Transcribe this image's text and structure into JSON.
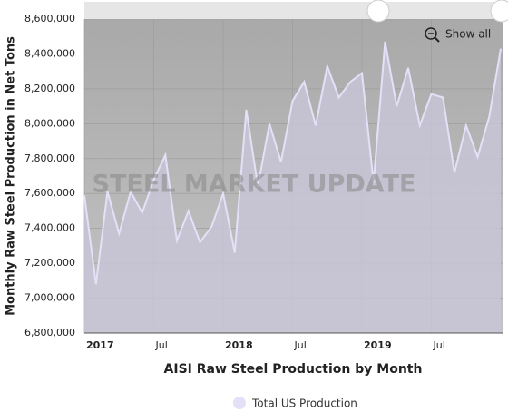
{
  "chart_data": {
    "type": "area",
    "title": "AISI Raw Steel Production by Month",
    "y_label": "Monthly Raw Steel Production in Net Tons",
    "watermark": "STEEL MARKET UPDATE",
    "button": "Show all",
    "categories": [
      "2017",
      null,
      null,
      null,
      null,
      null,
      "Jul",
      null,
      null,
      null,
      null,
      null,
      "2018",
      null,
      null,
      null,
      null,
      null,
      "Jul",
      null,
      null,
      null,
      null,
      null,
      "2019",
      null,
      null,
      null,
      null,
      null,
      "Jul",
      null,
      null,
      null,
      null,
      null,
      null
    ],
    "series": [
      {
        "name": "Total US Production",
        "color": "#e4e0f8",
        "values": [
          7590000,
          7080000,
          7610000,
          7370000,
          7610000,
          7490000,
          7680000,
          7820000,
          7330000,
          7500000,
          7320000,
          7410000,
          7600000,
          7260000,
          8080000,
          7640000,
          8000000,
          7780000,
          8130000,
          8240000,
          7990000,
          8330000,
          8150000,
          8240000,
          8290000,
          7660000,
          8470000,
          8100000,
          8320000,
          7990000,
          8170000,
          8150000,
          7720000,
          7990000,
          7810000,
          8040000,
          8430000
        ]
      }
    ],
    "ylim": [
      6800000,
      8600000
    ],
    "yticks": [
      {
        "value": 6800000,
        "label": "6,800,000"
      },
      {
        "value": 7000000,
        "label": "7,000,000"
      },
      {
        "value": 7200000,
        "label": "7,200,000"
      },
      {
        "value": 7400000,
        "label": "7,400,000"
      },
      {
        "value": 7600000,
        "label": "7,600,000"
      },
      {
        "value": 7800000,
        "label": "7,800,000"
      },
      {
        "value": 8000000,
        "label": "8,000,000"
      },
      {
        "value": 8200000,
        "label": "8,200,000"
      },
      {
        "value": 8400000,
        "label": "8,400,000"
      },
      {
        "value": 8600000,
        "label": "8,600,000"
      }
    ],
    "grid": true
  }
}
